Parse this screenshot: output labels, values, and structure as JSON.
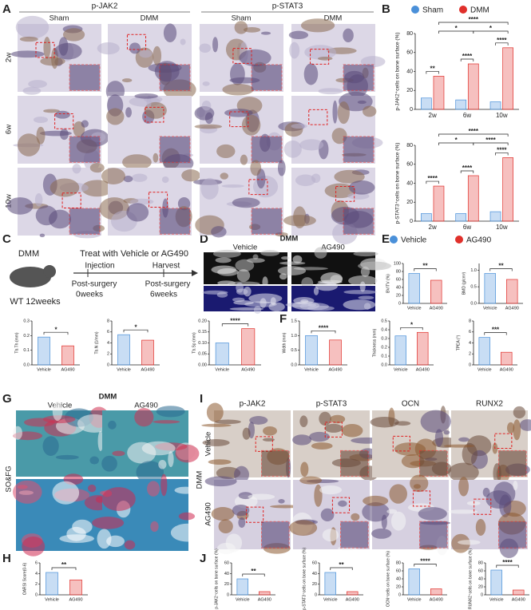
{
  "panel_labels": [
    "A",
    "B",
    "C",
    "D",
    "E",
    "F",
    "G",
    "H",
    "I",
    "J"
  ],
  "panel_a": {
    "stains": [
      "p-JAK2",
      "p-STAT3"
    ],
    "groups": [
      "Sham",
      "DMM",
      "Sham",
      "DMM"
    ],
    "rows": [
      "2w",
      "6w",
      "10w"
    ]
  },
  "panel_c": {
    "model": "DMM",
    "treatment": "Treat with Vehicle or AG490",
    "injection": "Injection",
    "harvest": "Harvest",
    "post_surgery_start": "Post-surgery",
    "start": "0weeks",
    "post_surgery_end": "Post-surgery",
    "end": "6weeks",
    "mouse": "WT 12weeks"
  },
  "panel_d": {
    "model": "DMM",
    "groups": [
      "Vehicle",
      "AG490"
    ]
  },
  "panel_e_legend": [
    "Vehicle",
    "AG490"
  ],
  "panel_g": {
    "model": "DMM",
    "groups": [
      "Vehicle",
      "AG490"
    ],
    "stain": "SO&FG"
  },
  "panel_i": {
    "stains": [
      "p-JAK2",
      "p-STAT3",
      "OCN",
      "RUNX2"
    ],
    "model": "DMM",
    "rows": [
      "Vehicle",
      "AG490"
    ]
  },
  "chart_data": [
    {
      "type": "grouped_bar",
      "ylabel": "p-JAK2⁺cells on bone surface (%)",
      "categories": [
        "2w",
        "6w",
        "10w"
      ],
      "series": [
        {
          "name": "Sham",
          "color": "#4a90d9",
          "values": [
            12,
            10,
            8
          ]
        },
        {
          "name": "DMM",
          "color": "#e0302b",
          "values": [
            35,
            48,
            65
          ]
        }
      ],
      "ylim": [
        0,
        80
      ],
      "yticks": [
        0,
        20,
        40,
        60,
        80
      ],
      "annotations": [
        "**",
        "****",
        "****",
        "*",
        "*",
        "****"
      ]
    },
    {
      "type": "grouped_bar",
      "ylabel": "p-STAT3⁺cells on bone surface (%)",
      "categories": [
        "2w",
        "6w",
        "10w"
      ],
      "series": [
        {
          "name": "Sham",
          "color": "#4a90d9",
          "values": [
            8,
            8,
            10
          ]
        },
        {
          "name": "DMM",
          "color": "#e0302b",
          "values": [
            37,
            48,
            67
          ]
        }
      ],
      "ylim": [
        0,
        80
      ],
      "yticks": [
        0,
        20,
        40,
        60,
        80
      ],
      "annotations": [
        "****",
        "****",
        "****",
        "*",
        "****",
        "****"
      ]
    },
    {
      "type": "bar",
      "ylabel": "BV/TV (%)",
      "categories": [
        "Vehicle",
        "AG490"
      ],
      "values": [
        75,
        58
      ],
      "colors": [
        "#4a90d9",
        "#e0302b"
      ],
      "ylim": [
        0,
        100
      ],
      "yticks": [
        0,
        20,
        40,
        60,
        80,
        100
      ],
      "annotation": "**"
    },
    {
      "type": "bar",
      "ylabel": "BMD (g/cm³)",
      "categories": [
        "Vehicle",
        "AG490"
      ],
      "values": [
        0.9,
        0.72
      ],
      "colors": [
        "#4a90d9",
        "#e0302b"
      ],
      "ylim": [
        0,
        1.2
      ],
      "yticks": [
        {
          "value": 0,
          "label": "0.0"
        },
        0.5,
        {
          "value": 1,
          "label": "1.0"
        }
      ],
      "annotation": "**"
    },
    {
      "type": "bar",
      "ylabel": "Tb.Th (mm)",
      "categories": [
        "Vehicle",
        "AG490"
      ],
      "values": [
        0.19,
        0.13
      ],
      "colors": [
        "#4a90d9",
        "#e0302b"
      ],
      "ylim": [
        0,
        0.3
      ],
      "yticks": [
        {
          "value": 0,
          "label": "0.0"
        },
        0.1,
        0.2,
        0.3
      ],
      "annotation": "*"
    },
    {
      "type": "bar",
      "ylabel": "Tb.N (1/mm)",
      "categories": [
        "Vehicle",
        "AG490"
      ],
      "values": [
        5.5,
        4.5
      ],
      "colors": [
        "#4a90d9",
        "#e0302b"
      ],
      "ylim": [
        0,
        8
      ],
      "yticks": [
        0,
        2,
        4,
        6,
        8
      ],
      "annotation": "*"
    },
    {
      "type": "bar",
      "ylabel": "Tb.Sp (mm)",
      "categories": [
        "Vehicle",
        "AG490"
      ],
      "values": [
        0.1,
        0.165
      ],
      "colors": [
        "#4a90d9",
        "#e0302b"
      ],
      "ylim": [
        0,
        0.2
      ],
      "yticks": [
        {
          "value": 0,
          "label": "0.00"
        },
        {
          "value": 0.05,
          "label": "0.05"
        },
        {
          "value": 0.1,
          "label": "0.10"
        },
        {
          "value": 0.15,
          "label": "0.15"
        },
        {
          "value": 0.2,
          "label": "0.20"
        }
      ],
      "annotation": "****"
    },
    {
      "type": "bar",
      "ylabel": "Width (mm)",
      "categories": [
        "Vehicle",
        "AG490"
      ],
      "values": [
        1.0,
        0.85
      ],
      "colors": [
        "#4a90d9",
        "#e0302b"
      ],
      "ylim": [
        0,
        1.5
      ],
      "yticks": [
        {
          "value": 0,
          "label": "0.0"
        },
        0.5,
        {
          "value": 1,
          "label": "1.0"
        },
        1.5
      ],
      "annotation": "****"
    },
    {
      "type": "bar",
      "ylabel": "Thickness (mm)",
      "categories": [
        "Vehicle",
        "AG490"
      ],
      "values": [
        0.33,
        0.37
      ],
      "colors": [
        "#4a90d9",
        "#e0302b"
      ],
      "ylim": [
        0,
        0.5
      ],
      "yticks": [
        {
          "value": 0,
          "label": "0.0"
        },
        0.1,
        0.2,
        0.3,
        0.4,
        0.5
      ],
      "annotation": "*"
    },
    {
      "type": "bar",
      "ylabel": "TPEA (°)",
      "categories": [
        "Vehicle",
        "AG490"
      ],
      "values": [
        5,
        2.3
      ],
      "colors": [
        "#4a90d9",
        "#e0302b"
      ],
      "ylim": [
        0,
        8
      ],
      "yticks": [
        0,
        2,
        4,
        6,
        8
      ],
      "annotation": "***"
    },
    {
      "type": "bar",
      "ylabel": "OARSI Score(0-6)",
      "categories": [
        "Vehicle",
        "AG490"
      ],
      "values": [
        4.2,
        2.8
      ],
      "colors": [
        "#4a90d9",
        "#e0302b"
      ],
      "ylim": [
        0,
        6
      ],
      "yticks": [
        0,
        2,
        4,
        6
      ],
      "annotation": "**"
    },
    {
      "type": "bar",
      "ylabel": "p-JAK2⁺cells on bone surface (%)",
      "categories": [
        "Vehicle",
        "AG490"
      ],
      "values": [
        30,
        6
      ],
      "colors": [
        "#4a90d9",
        "#e0302b"
      ],
      "ylim": [
        0,
        60
      ],
      "yticks": [
        0,
        20,
        40,
        60
      ],
      "annotation": "**"
    },
    {
      "type": "bar",
      "ylabel": "p-STAT3⁺cells on bone surface (%)",
      "categories": [
        "Vehicle",
        "AG490"
      ],
      "values": [
        42,
        6
      ],
      "colors": [
        "#4a90d9",
        "#e0302b"
      ],
      "ylim": [
        0,
        60
      ],
      "yticks": [
        0,
        20,
        40,
        60
      ],
      "annotation": "**"
    },
    {
      "type": "bar",
      "ylabel": "OCN⁺cells on bone surface (%)",
      "categories": [
        "Vehicle",
        "AG490"
      ],
      "values": [
        65,
        15
      ],
      "colors": [
        "#4a90d9",
        "#e0302b"
      ],
      "ylim": [
        0,
        80
      ],
      "yticks": [
        0,
        20,
        40,
        60,
        80
      ],
      "annotation": "****"
    },
    {
      "type": "bar",
      "ylabel": "RUNX2⁺cells on bone surface (%)",
      "categories": [
        "Vehicle",
        "AG490"
      ],
      "values": [
        62,
        12
      ],
      "colors": [
        "#4a90d9",
        "#e0302b"
      ],
      "ylim": [
        0,
        80
      ],
      "yticks": [
        0,
        20,
        40,
        60,
        80
      ],
      "annotation": "****"
    }
  ]
}
